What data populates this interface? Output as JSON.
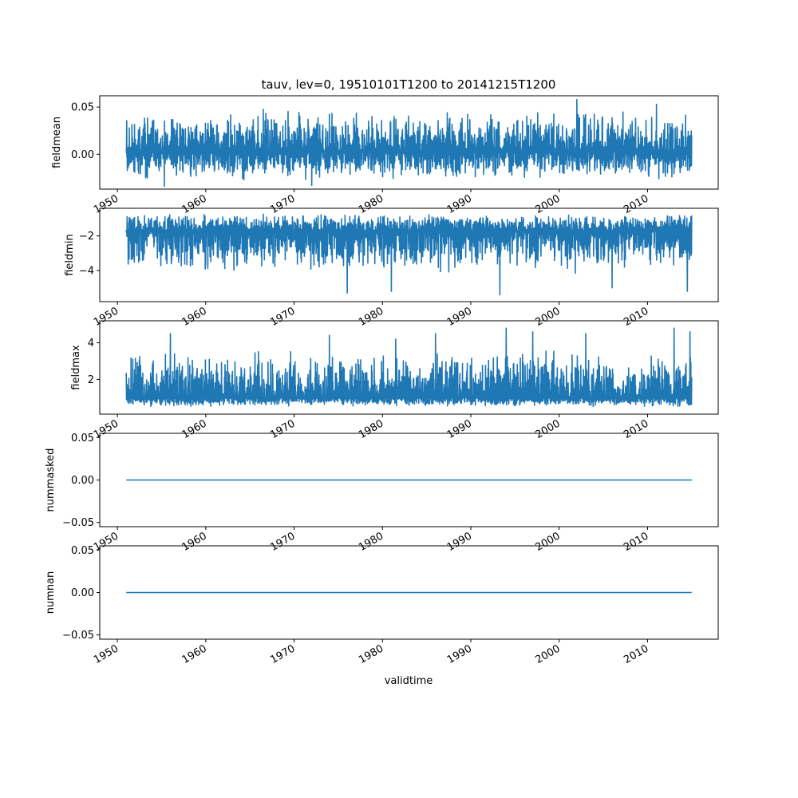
{
  "figure": {
    "title": "tauv, lev=0, 19510101T1200 to 20141215T1200",
    "xlabel": "validtime",
    "line_color": "#1f77b4"
  },
  "chart_data": [
    {
      "type": "line",
      "ylabel": "fieldmean",
      "xlim": [
        1948,
        2018
      ],
      "ylim": [
        -0.037,
        0.062
      ],
      "x_range": [
        1951.0,
        2015.0
      ],
      "yticks": [
        {
          "value": 0.05,
          "label": "0.05"
        },
        {
          "value": 0.0,
          "label": "0.00"
        }
      ],
      "xticks": [
        {
          "value": 1950,
          "label": "1950"
        },
        {
          "value": 1960,
          "label": "1960"
        },
        {
          "value": 1970,
          "label": "1970"
        },
        {
          "value": 1980,
          "label": "1980"
        },
        {
          "value": 1990,
          "label": "1990"
        },
        {
          "value": 2000,
          "label": "2000"
        },
        {
          "value": 2010,
          "label": "2010"
        }
      ],
      "envelope": {
        "lower": -0.028,
        "upper": 0.048,
        "center": 0.003,
        "spikes": [
          [
            2002.0,
            0.058
          ],
          [
            2011.0,
            0.053
          ],
          [
            1955.3,
            -0.034
          ],
          [
            1972.0,
            -0.033
          ]
        ]
      }
    },
    {
      "type": "line",
      "ylabel": "fieldmin",
      "xlim": [
        1948,
        2018
      ],
      "ylim": [
        -5.8,
        -0.4
      ],
      "x_range": [
        1951.0,
        2015.0
      ],
      "yticks": [
        {
          "value": -2,
          "label": "−2"
        },
        {
          "value": -4,
          "label": "−4"
        }
      ],
      "xticks": [
        {
          "value": 1950,
          "label": "1950"
        },
        {
          "value": 1960,
          "label": "1960"
        },
        {
          "value": 1970,
          "label": "1970"
        },
        {
          "value": 1980,
          "label": "1980"
        },
        {
          "value": 1990,
          "label": "1990"
        },
        {
          "value": 2000,
          "label": "2000"
        },
        {
          "value": 2010,
          "label": "2010"
        }
      ],
      "envelope": {
        "lower": -4.2,
        "upper": -0.7,
        "center": -1.7,
        "spikes": [
          [
            1993.3,
            -5.4
          ],
          [
            1976.0,
            -5.3
          ],
          [
            1981.0,
            -5.2
          ],
          [
            2014.5,
            -5.2
          ],
          [
            2006.0,
            -5.0
          ]
        ]
      }
    },
    {
      "type": "line",
      "ylabel": "fieldmax",
      "xlim": [
        1948,
        2018
      ],
      "ylim": [
        0.1,
        5.2
      ],
      "x_range": [
        1951.0,
        2015.0
      ],
      "yticks": [
        {
          "value": 4,
          "label": "4"
        },
        {
          "value": 2,
          "label": "2"
        }
      ],
      "xticks": [
        {
          "value": 1950,
          "label": "1950"
        },
        {
          "value": 1960,
          "label": "1960"
        },
        {
          "value": 1970,
          "label": "1970"
        },
        {
          "value": 1980,
          "label": "1980"
        },
        {
          "value": 1990,
          "label": "1990"
        },
        {
          "value": 2000,
          "label": "2000"
        },
        {
          "value": 2010,
          "label": "2010"
        }
      ],
      "envelope": {
        "lower": 0.5,
        "upper": 3.6,
        "center": 1.0,
        "spikes": [
          [
            1994.0,
            4.8
          ],
          [
            2013.0,
            4.8
          ],
          [
            1997.0,
            4.6
          ],
          [
            2014.8,
            4.6
          ],
          [
            1956.0,
            4.5
          ],
          [
            1986.0,
            4.5
          ],
          [
            1974.0,
            4.4
          ],
          [
            2003.0,
            4.5
          ],
          [
            1981.5,
            4.2
          ]
        ]
      }
    },
    {
      "type": "line",
      "ylabel": "nummasked",
      "xlim": [
        1948,
        2018
      ],
      "ylim": [
        -0.055,
        0.055
      ],
      "yticks": [
        {
          "value": 0.05,
          "label": "0.05"
        },
        {
          "value": 0.0,
          "label": "0.00"
        },
        {
          "value": -0.05,
          "label": "−0.05"
        }
      ],
      "xticks": [
        {
          "value": 1950,
          "label": "1950"
        },
        {
          "value": 1960,
          "label": "1960"
        },
        {
          "value": 1970,
          "label": "1970"
        },
        {
          "value": 1980,
          "label": "1980"
        },
        {
          "value": 1990,
          "label": "1990"
        },
        {
          "value": 2000,
          "label": "2000"
        },
        {
          "value": 2010,
          "label": "2010"
        }
      ],
      "x": [
        1951.0,
        2015.0
      ],
      "y": [
        0.0,
        0.0
      ]
    },
    {
      "type": "line",
      "ylabel": "numnan",
      "xlim": [
        1948,
        2018
      ],
      "ylim": [
        -0.055,
        0.055
      ],
      "yticks": [
        {
          "value": 0.05,
          "label": "0.05"
        },
        {
          "value": 0.0,
          "label": "0.00"
        },
        {
          "value": -0.05,
          "label": "−0.05"
        }
      ],
      "xticks": [
        {
          "value": 1950,
          "label": "1950"
        },
        {
          "value": 1960,
          "label": "1960"
        },
        {
          "value": 1970,
          "label": "1970"
        },
        {
          "value": 1980,
          "label": "1980"
        },
        {
          "value": 1990,
          "label": "1990"
        },
        {
          "value": 2000,
          "label": "2000"
        },
        {
          "value": 2010,
          "label": "2010"
        }
      ],
      "x": [
        1951.0,
        2015.0
      ],
      "y": [
        0.0,
        0.0
      ]
    }
  ]
}
